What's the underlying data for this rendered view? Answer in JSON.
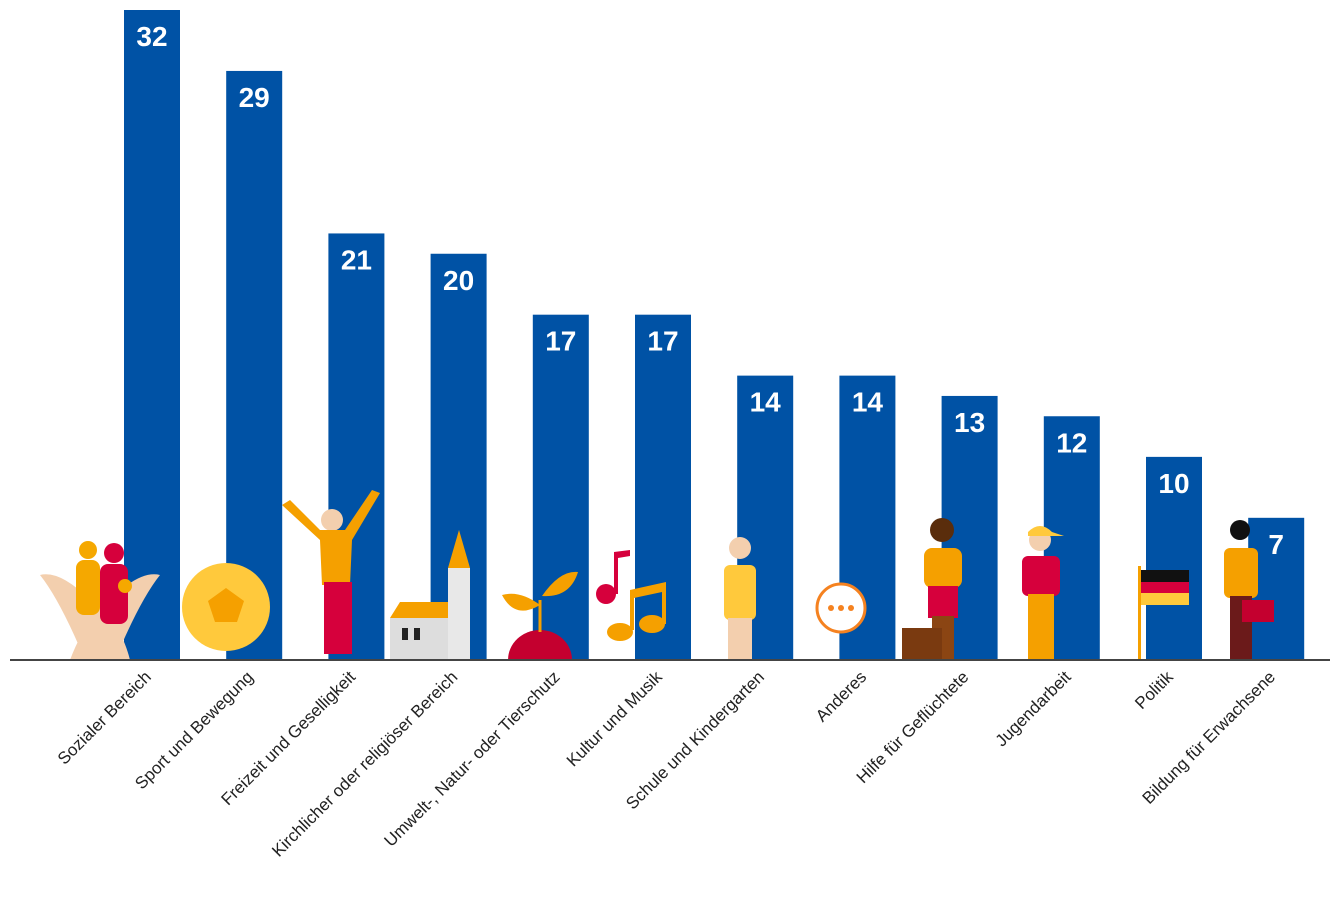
{
  "chart_data": {
    "type": "bar",
    "categories": [
      "Sozialer Bereich",
      "Sport und Bewegung",
      "Freizeit und Geselligkeit",
      "Kirchlicher oder religiöser Bereich",
      "Umwelt-, Natur- oder Tierschutz",
      "Kultur und Musik",
      "Schule und Kindergarten",
      "Anderes",
      "Hilfe für Geflüchtete",
      "Jugendarbeit",
      "Politik",
      "Bildung für Erwachsene"
    ],
    "values": [
      32,
      29,
      21,
      20,
      17,
      17,
      14,
      14,
      13,
      12,
      10,
      7
    ],
    "color": "#0052a5"
  }
}
